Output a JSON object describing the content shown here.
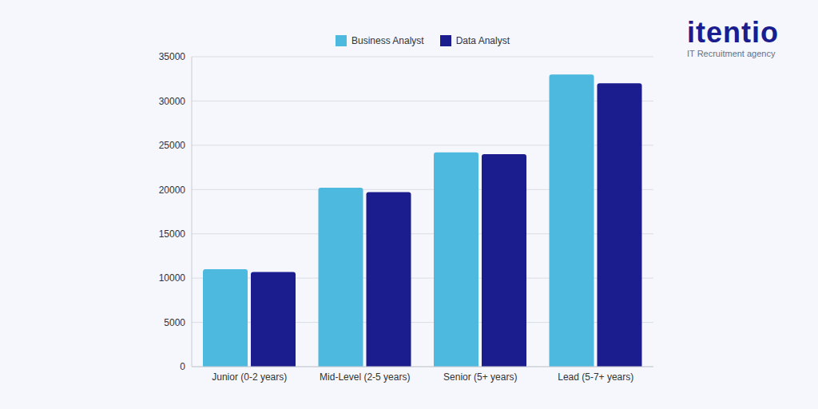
{
  "chart_data": {
    "type": "bar",
    "categories": [
      "Junior (0-2 years)",
      "Mid-Level (2-5 years)",
      "Senior (5+ years)",
      "Lead (5-7+ years)"
    ],
    "series": [
      {
        "name": "Business Analyst",
        "color": "#4EB9DE",
        "values": [
          11000,
          20200,
          24200,
          33000
        ]
      },
      {
        "name": "Data Analyst",
        "color": "#1B1D8E",
        "values": [
          10700,
          19700,
          24000,
          32000
        ]
      }
    ],
    "ylim": [
      0,
      35000
    ],
    "yticks": [
      0,
      5000,
      10000,
      15000,
      20000,
      25000,
      30000,
      35000
    ],
    "grid": true,
    "legend": "top",
    "annotations": [
      "itentio",
      "IT Recruitment agency"
    ]
  }
}
